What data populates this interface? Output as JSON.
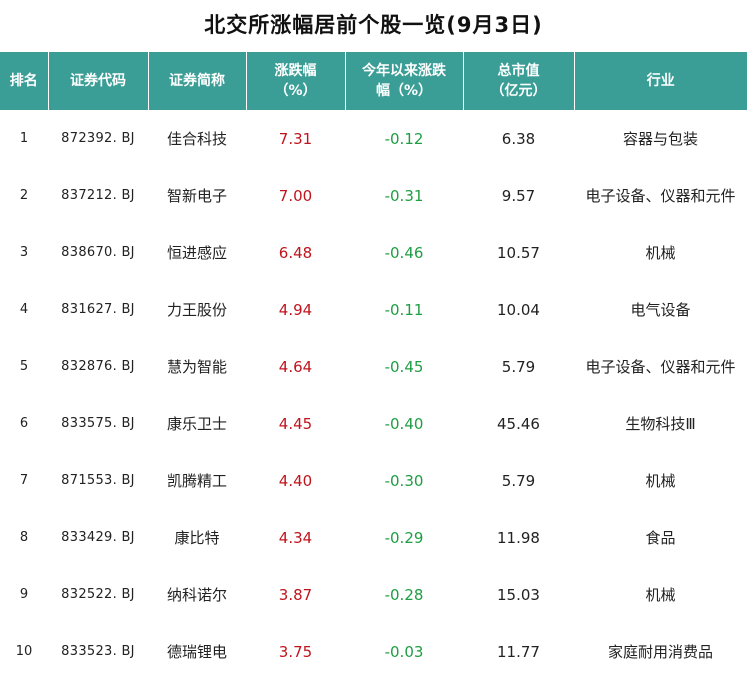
{
  "title": "北交所涨幅居前个股一览(9月3日)",
  "colors": {
    "header_bg": "#3a9e96",
    "up": "#c0141d",
    "down": "#1e9e43"
  },
  "table": {
    "headers": {
      "rank": "排名",
      "code": "证券代码",
      "name": "证券简称",
      "change_line1": "涨跌幅",
      "change_line2": "（%）",
      "ytd_line1": "今年以来涨跌",
      "ytd_line2": "幅（%）",
      "cap_line1": "总市值",
      "cap_line2": "（亿元）",
      "industry": "行业"
    },
    "rows": [
      {
        "rank": "1",
        "code": "872392. BJ",
        "name": "佳合科技",
        "change": "7.31",
        "ytd": "-0.12",
        "cap": "6.38",
        "industry": "容器与包装"
      },
      {
        "rank": "2",
        "code": "837212. BJ",
        "name": "智新电子",
        "change": "7.00",
        "ytd": "-0.31",
        "cap": "9.57",
        "industry": "电子设备、仪器和元件"
      },
      {
        "rank": "3",
        "code": "838670. BJ",
        "name": "恒进感应",
        "change": "6.48",
        "ytd": "-0.46",
        "cap": "10.57",
        "industry": "机械"
      },
      {
        "rank": "4",
        "code": "831627. BJ",
        "name": "力王股份",
        "change": "4.94",
        "ytd": "-0.11",
        "cap": "10.04",
        "industry": "电气设备"
      },
      {
        "rank": "5",
        "code": "832876. BJ",
        "name": "慧为智能",
        "change": "4.64",
        "ytd": "-0.45",
        "cap": "5.79",
        "industry": "电子设备、仪器和元件"
      },
      {
        "rank": "6",
        "code": "833575. BJ",
        "name": "康乐卫士",
        "change": "4.45",
        "ytd": "-0.40",
        "cap": "45.46",
        "industry": "生物科技Ⅲ"
      },
      {
        "rank": "7",
        "code": "871553. BJ",
        "name": "凯腾精工",
        "change": "4.40",
        "ytd": "-0.30",
        "cap": "5.79",
        "industry": "机械"
      },
      {
        "rank": "8",
        "code": "833429. BJ",
        "name": "康比特",
        "change": "4.34",
        "ytd": "-0.29",
        "cap": "11.98",
        "industry": "食品"
      },
      {
        "rank": "9",
        "code": "832522. BJ",
        "name": "纳科诺尔",
        "change": "3.87",
        "ytd": "-0.28",
        "cap": "15.03",
        "industry": "机械"
      },
      {
        "rank": "10",
        "code": "833523. BJ",
        "name": "德瑞锂电",
        "change": "3.75",
        "ytd": "-0.03",
        "cap": "11.77",
        "industry": "家庭耐用消费品"
      }
    ]
  }
}
